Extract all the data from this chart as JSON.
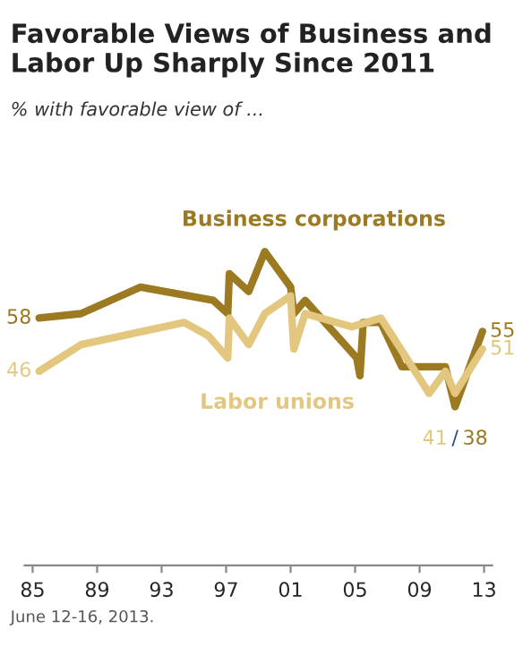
{
  "chart_data": {
    "type": "line",
    "title": "Favorable Views of Business and Labor Up Sharply Since 2011",
    "subtitle": "% with favorable view of ...",
    "series": [
      {
        "name": "Business corporations",
        "color": "#9c7a22",
        "x": [
          1985.4,
          1988.0,
          1991.7,
          1996.2,
          1997.1,
          1997.2,
          1998.4,
          1999.4,
          2001.0,
          2001.2,
          2001.9,
          2005.1,
          2005.3,
          2005.5,
          2006.6,
          2007.9,
          2010.6,
          2011.2,
          2012.9
        ],
        "values": [
          58,
          59,
          65,
          62,
          59,
          68,
          64,
          73,
          65,
          59,
          62,
          49,
          45,
          57,
          57,
          47,
          47,
          38,
          55
        ],
        "value_labels": [
          "58",
          null,
          null,
          null,
          null,
          null,
          null,
          null,
          null,
          null,
          null,
          null,
          null,
          null,
          null,
          null,
          null,
          "38",
          "55"
        ]
      },
      {
        "name": "Labor unions",
        "color": "#e3c77f",
        "x": [
          1985.4,
          1988.0,
          1994.4,
          1995.9,
          1997.1,
          1997.2,
          1998.4,
          1999.4,
          2001.0,
          2001.2,
          2001.9,
          2004.8,
          2006.6,
          2009.6,
          2010.6,
          2011.2,
          2012.9
        ],
        "values": [
          46,
          52,
          57,
          54,
          49,
          58,
          52,
          59,
          63,
          51,
          59,
          56,
          58,
          41,
          46,
          41,
          51
        ],
        "value_labels": [
          "46",
          null,
          null,
          null,
          null,
          null,
          null,
          null,
          null,
          null,
          null,
          null,
          null,
          null,
          null,
          "41",
          "51"
        ]
      }
    ],
    "xlim": [
      1984.5,
      2013.5
    ],
    "xticks": [
      {
        "value": 1985,
        "label": "85"
      },
      {
        "value": 1989,
        "label": "89"
      },
      {
        "value": 1993,
        "label": "93"
      },
      {
        "value": 1997,
        "label": "97"
      },
      {
        "value": 2001,
        "label": "01"
      },
      {
        "value": 2005,
        "label": "05"
      },
      {
        "value": 2009,
        "label": "09"
      },
      {
        "value": 2013,
        "label": "13"
      }
    ],
    "tick_labels": "x",
    "grid": false,
    "legend": false,
    "marker": "none",
    "line_style": "solid",
    "annotations": [
      "/",
      "June 12-16, 2013."
    ]
  }
}
